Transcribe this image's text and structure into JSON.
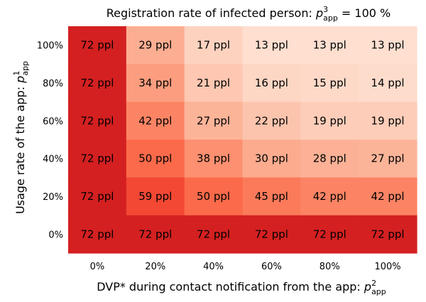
{
  "chart_data": {
    "type": "heatmap",
    "title": "Registration rate of infected person: ",
    "title_symbol": "p",
    "title_symbol_sup": "3",
    "title_symbol_sub": "app",
    "title_suffix": " = 100 %",
    "xlabel": "DVP* during contact notification from the app: ",
    "xlabel_symbol": "p",
    "xlabel_symbol_sup": "2",
    "xlabel_symbol_sub": "app",
    "ylabel": "Usage rate of the app: ",
    "ylabel_symbol": "p",
    "ylabel_symbol_sup": "1",
    "ylabel_symbol_sub": "app",
    "x_categories": [
      "0%",
      "20%",
      "40%",
      "60%",
      "80%",
      "100%"
    ],
    "y_categories": [
      "100%",
      "80%",
      "60%",
      "40%",
      "20%",
      "0%"
    ],
    "unit": "ppl",
    "values": [
      [
        72,
        29,
        17,
        13,
        13,
        13
      ],
      [
        72,
        34,
        21,
        16,
        15,
        14
      ],
      [
        72,
        42,
        27,
        22,
        19,
        19
      ],
      [
        72,
        50,
        38,
        30,
        28,
        27
      ],
      [
        72,
        59,
        50,
        45,
        42,
        42
      ],
      [
        72,
        72,
        72,
        72,
        72,
        72
      ]
    ],
    "color_scale": {
      "cmap": "Reds",
      "vmin": 0,
      "vmax": 100
    }
  }
}
